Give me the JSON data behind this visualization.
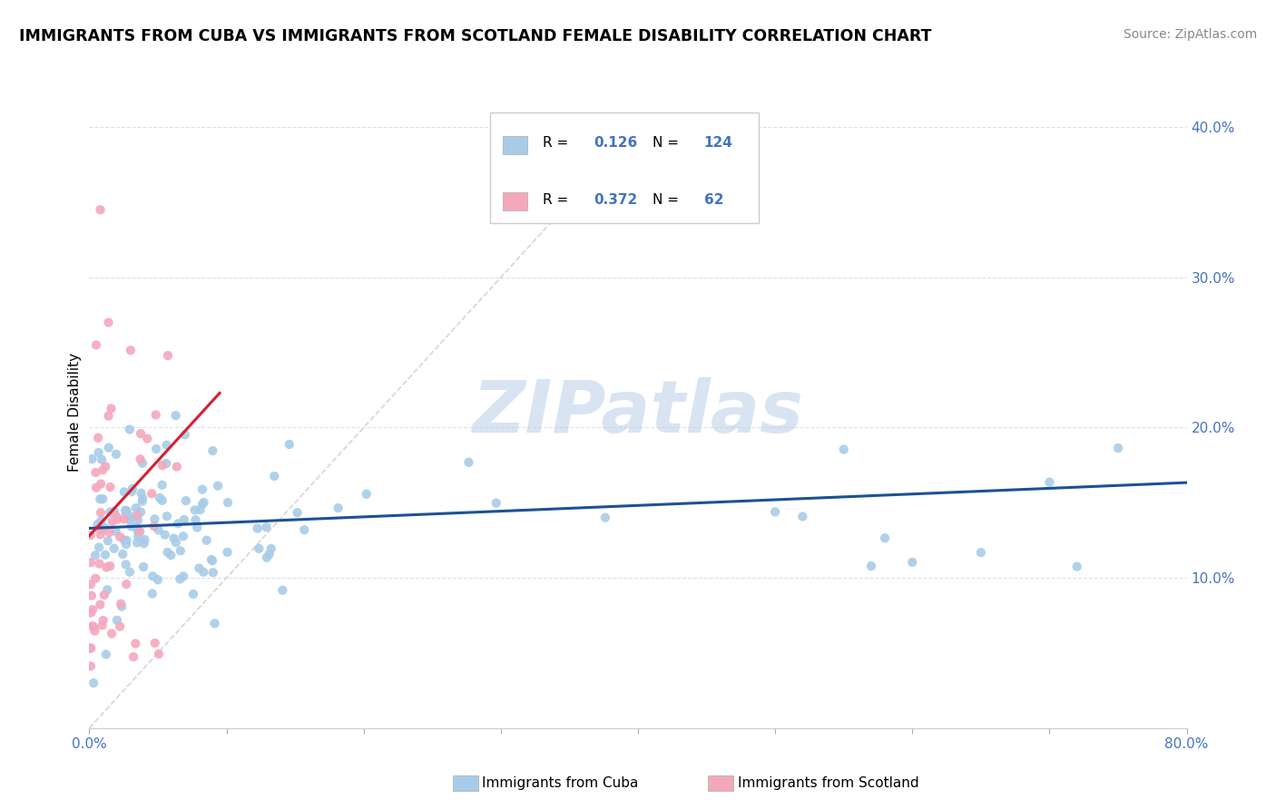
{
  "title": "IMMIGRANTS FROM CUBA VS IMMIGRANTS FROM SCOTLAND FEMALE DISABILITY CORRELATION CHART",
  "source": "Source: ZipAtlas.com",
  "ylabel": "Female Disability",
  "xlim": [
    0.0,
    0.8
  ],
  "ylim": [
    0.0,
    0.42
  ],
  "xtick_vals": [
    0.0,
    0.1,
    0.2,
    0.3,
    0.4,
    0.5,
    0.6,
    0.7,
    0.8
  ],
  "xtick_labels": [
    "0.0%",
    "",
    "",
    "",
    "",
    "",
    "",
    "",
    "80.0%"
  ],
  "ytick_vals": [
    0.1,
    0.2,
    0.3,
    0.4
  ],
  "ytick_labels": [
    "10.0%",
    "20.0%",
    "30.0%",
    "40.0%"
  ],
  "cuba_color": "#a8cce8",
  "scotland_color": "#f4a8bc",
  "cuba_line_color": "#1a5296",
  "scotland_line_color": "#d42030",
  "diag_color": "#cccccc",
  "cuba_R": 0.126,
  "cuba_N": 124,
  "scotland_R": 0.372,
  "scotland_N": 62,
  "watermark_text": "ZIPatlas",
  "watermark_color": "#b8cfe8",
  "legend_label_cuba": "Immigrants from Cuba",
  "legend_label_scotland": "Immigrants from Scotland",
  "tick_color": "#4472c4",
  "grid_color": "#e0e0e0"
}
